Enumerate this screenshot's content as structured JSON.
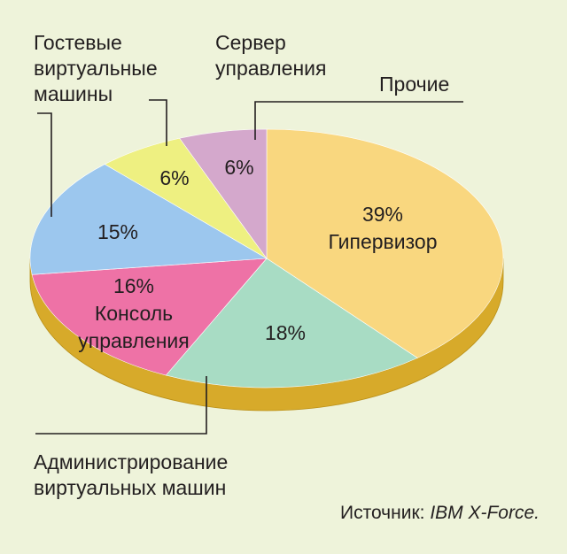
{
  "chart_data": {
    "type": "pie",
    "title": "",
    "slices": [
      {
        "key": "hyp",
        "label": [
          "Гипервизор"
        ],
        "value": 39,
        "value_label": "39%",
        "color": "#f9d77f"
      },
      {
        "key": "adm",
        "label": [
          "Администрирование",
          "виртуальных машин"
        ],
        "value": 18,
        "value_label": "18%",
        "color": "#a8dcc4"
      },
      {
        "key": "con",
        "label": [
          "Консоль",
          "управления"
        ],
        "value": 16,
        "value_label": "16%",
        "color": "#ee72a6"
      },
      {
        "key": "gst",
        "label": [
          "Гостевые",
          "виртуальные",
          "машины"
        ],
        "value": 15,
        "value_label": "15%",
        "color": "#9cc7ee"
      },
      {
        "key": "srv",
        "label": [
          "Сервер",
          "управления"
        ],
        "value": 6,
        "value_label": "6%",
        "color": "#eef081"
      },
      {
        "key": "oth",
        "label": [
          "Прочие"
        ],
        "value": 6,
        "value_label": "6%",
        "color": "#d4a8cc"
      }
    ],
    "side_color": "#d7aa2a",
    "background": "#eef3da"
  },
  "source": {
    "prefix": "Источник: ",
    "name": "IBM X-Force."
  }
}
